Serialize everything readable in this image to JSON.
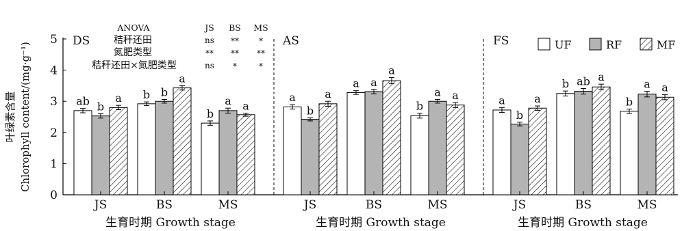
{
  "chart_data": {
    "type": "bar",
    "ylabel_cn": "叶绿素含量",
    "ylabel_en": "Chlorophyll content/(mg·g⁻¹)",
    "ylim": [
      0,
      5
    ],
    "yticks": [
      "0",
      "1",
      "2",
      "3",
      "4",
      "5"
    ],
    "xlabel": "生育时期 Growth stage",
    "categories": [
      "JS",
      "BS",
      "MS"
    ],
    "legend": {
      "position": "top-right",
      "entries": [
        {
          "name": "UF",
          "fill": "#ffffff"
        },
        {
          "name": "RF",
          "fill": "#b4b4b4"
        },
        {
          "name": "MF",
          "fill": "hatch"
        }
      ]
    },
    "anova": {
      "title": "ANOVA",
      "columns": [
        "JS",
        "BS",
        "MS"
      ],
      "rows": [
        {
          "label": "秸秆还田",
          "values": [
            "ns",
            "**",
            "*"
          ]
        },
        {
          "label": "氮肥类型",
          "values": [
            "**",
            "**",
            "**"
          ]
        },
        {
          "label": "秸秆还田×氮肥类型",
          "values": [
            "ns",
            "*",
            "*"
          ]
        }
      ]
    },
    "panels": [
      {
        "name": "DS",
        "series": [
          {
            "name": "UF",
            "values": [
              2.7,
              2.92,
              2.3
            ],
            "errors": [
              0.07,
              0.06,
              0.07
            ],
            "letters": [
              "ab",
              "b",
              "b"
            ]
          },
          {
            "name": "RF",
            "values": [
              2.53,
              3.0,
              2.7
            ],
            "errors": [
              0.07,
              0.06,
              0.08
            ],
            "letters": [
              "b",
              "b",
              "a"
            ]
          },
          {
            "name": "MF",
            "values": [
              2.8,
              3.43,
              2.57
            ],
            "errors": [
              0.07,
              0.07,
              0.05
            ],
            "letters": [
              "a",
              "a",
              "a"
            ]
          }
        ]
      },
      {
        "name": "AS",
        "series": [
          {
            "name": "UF",
            "values": [
              2.82,
              3.28,
              2.54
            ],
            "errors": [
              0.07,
              0.06,
              0.08
            ],
            "letters": [
              "a",
              "a",
              "b"
            ]
          },
          {
            "name": "RF",
            "values": [
              2.42,
              3.31,
              3.0
            ],
            "errors": [
              0.05,
              0.07,
              0.06
            ],
            "letters": [
              "b",
              "a",
              "a"
            ]
          },
          {
            "name": "MF",
            "values": [
              2.92,
              3.66,
              2.88
            ],
            "errors": [
              0.08,
              0.1,
              0.08
            ],
            "letters": [
              "a",
              "a",
              "a"
            ]
          }
        ]
      },
      {
        "name": "FS",
        "series": [
          {
            "name": "UF",
            "values": [
              2.72,
              3.25,
              2.68
            ],
            "errors": [
              0.08,
              0.08,
              0.07
            ],
            "letters": [
              "a",
              "b",
              "b"
            ]
          },
          {
            "name": "RF",
            "values": [
              2.27,
              3.32,
              3.23
            ],
            "errors": [
              0.06,
              0.09,
              0.09
            ],
            "letters": [
              "b",
              "ab",
              "a"
            ]
          },
          {
            "name": "MF",
            "values": [
              2.78,
              3.46,
              3.13
            ],
            "errors": [
              0.07,
              0.09,
              0.08
            ],
            "letters": [
              "a",
              "a",
              "a"
            ]
          }
        ]
      }
    ]
  }
}
